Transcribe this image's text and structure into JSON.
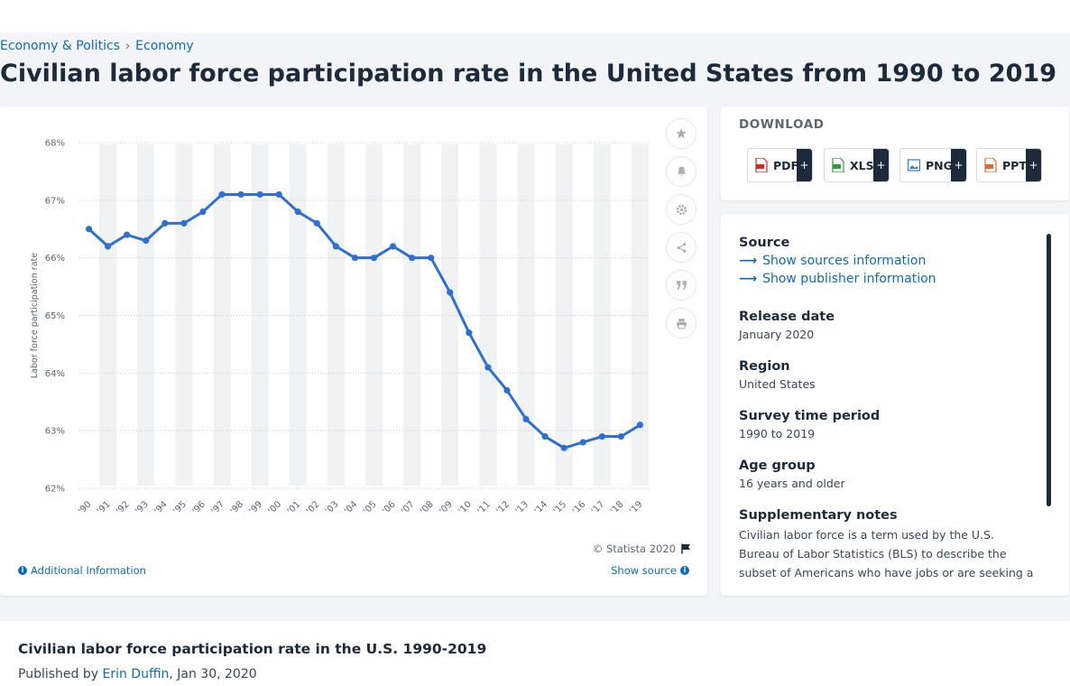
{
  "breadcrumb": {
    "items": [
      "Economy & Politics",
      "Economy"
    ],
    "separator": "›"
  },
  "page_title": "Civilian labor force participation rate in the United States from 1990 to 2019",
  "chart_tools": [
    "star-icon",
    "bell-icon",
    "gear-icon",
    "share-icon",
    "quote-icon",
    "print-icon"
  ],
  "chart_footer": {
    "copyright": "© Statista 2020",
    "additional_info": "Additional Information",
    "show_source": "Show source"
  },
  "download": {
    "title": "DOWNLOAD",
    "buttons": [
      {
        "label": "PDF",
        "plus": "+",
        "color": "#d9251d"
      },
      {
        "label": "XLS",
        "plus": "+",
        "color": "#2e9b3c"
      },
      {
        "label": "PNG",
        "plus": "+",
        "color": "#2f7fc1"
      },
      {
        "label": "PPT",
        "plus": "+",
        "color": "#e0682a"
      }
    ]
  },
  "info": {
    "source_label": "Source",
    "show_sources": "Show sources information",
    "show_publisher": "Show publisher information",
    "release_label": "Release date",
    "release_value": "January 2020",
    "region_label": "Region",
    "region_value": "United States",
    "survey_label": "Survey time period",
    "survey_value": "1990 to 2019",
    "age_label": "Age group",
    "age_value": "16 years and older",
    "notes_label": "Supplementary notes",
    "notes_value": "Civilian labor force is a term used by the U.S. Bureau of Labor Statistics (BLS) to describe the subset of Americans who have jobs or are seeking a"
  },
  "report": {
    "title": "Civilian labor force participation rate in the U.S. 1990-2019",
    "published_prefix": "Published by",
    "author": "Erin Duffin",
    "date": ", Jan 30, 2020"
  },
  "chart_data": {
    "type": "line",
    "title": "",
    "xlabel": "",
    "ylabel": "Labor force participation rate",
    "x": [
      "'90",
      "'91",
      "'92",
      "'93",
      "'94",
      "'95",
      "'96",
      "'97",
      "'98",
      "'99",
      "'00",
      "'01",
      "'02",
      "'03",
      "'04",
      "'05",
      "'06",
      "'07",
      "'08",
      "'09",
      "'10",
      "'11",
      "'12",
      "'13",
      "'14",
      "'15",
      "'16",
      "'17",
      "'18",
      "'19"
    ],
    "series": [
      {
        "values": [
          66.5,
          66.2,
          66.4,
          66.3,
          66.6,
          66.6,
          66.8,
          67.1,
          67.1,
          67.1,
          67.1,
          66.8,
          66.6,
          66.2,
          66.0,
          66.0,
          66.2,
          66.0,
          66.0,
          65.4,
          64.7,
          64.1,
          63.7,
          63.2,
          62.9,
          62.7,
          62.8,
          62.9,
          62.9,
          63.1
        ]
      }
    ],
    "y_ticks": [
      "62%",
      "63%",
      "64%",
      "65%",
      "66%",
      "67%",
      "68%"
    ],
    "ylim": [
      62,
      68
    ],
    "line_color": "#2f6fd2",
    "grid": true,
    "legend": "none"
  }
}
